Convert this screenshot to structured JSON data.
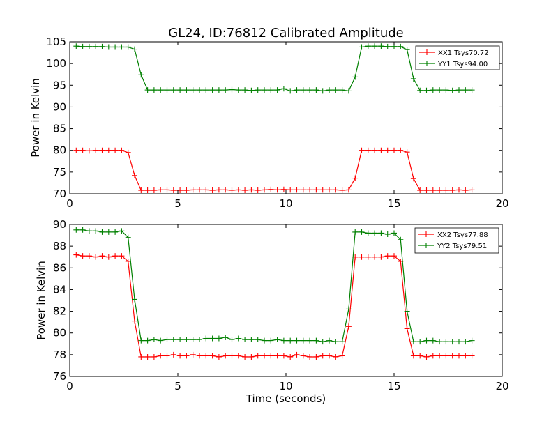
{
  "chart_data": [
    {
      "type": "line",
      "title": "GL24, ID:76812 Calibrated Amplitude",
      "xlabel": "",
      "ylabel": "Power in Kelvin",
      "xlim": [
        0,
        20
      ],
      "ylim": [
        70,
        105
      ],
      "xticks": [
        0,
        5,
        10,
        15,
        20
      ],
      "yticks": [
        70,
        75,
        80,
        85,
        90,
        95,
        100,
        105
      ],
      "grid": false,
      "legend_position": "top-right",
      "x": [
        0.3,
        0.6,
        0.9,
        1.2,
        1.5,
        1.8,
        2.1,
        2.4,
        2.7,
        3.0,
        3.3,
        3.6,
        3.9,
        4.2,
        4.5,
        4.8,
        5.1,
        5.4,
        5.7,
        6.0,
        6.3,
        6.6,
        6.9,
        7.2,
        7.5,
        7.8,
        8.1,
        8.4,
        8.7,
        9.0,
        9.3,
        9.6,
        9.9,
        10.2,
        10.5,
        10.8,
        11.1,
        11.4,
        11.7,
        12.0,
        12.3,
        12.6,
        12.9,
        13.2,
        13.5,
        13.8,
        14.1,
        14.4,
        14.7,
        15.0,
        15.3,
        15.6,
        15.9,
        16.2,
        16.5,
        16.8,
        17.1,
        17.4,
        17.7,
        18.0,
        18.3,
        18.6
      ],
      "series": [
        {
          "name": "XX1 Tsys70.72",
          "color": "#ff0000",
          "values": [
            80.0,
            80.0,
            79.9,
            80.0,
            80.0,
            80.0,
            80.0,
            80.0,
            79.5,
            74.2,
            70.8,
            70.8,
            70.8,
            70.9,
            70.9,
            70.8,
            70.8,
            70.8,
            70.9,
            70.9,
            70.9,
            70.8,
            70.9,
            70.9,
            70.8,
            70.9,
            70.8,
            70.9,
            70.8,
            70.9,
            71.0,
            70.9,
            71.0,
            70.9,
            70.9,
            70.9,
            70.9,
            70.9,
            70.9,
            70.9,
            70.9,
            70.8,
            70.9,
            73.6,
            80.0,
            80.0,
            80.0,
            80.0,
            80.0,
            80.0,
            80.0,
            79.6,
            73.5,
            70.8,
            70.8,
            70.8,
            70.8,
            70.8,
            70.8,
            70.9,
            70.8,
            70.9
          ]
        },
        {
          "name": "YY1 Tsys94.00",
          "color": "#008000",
          "values": [
            104.0,
            103.9,
            103.9,
            103.9,
            103.9,
            103.8,
            103.8,
            103.8,
            103.8,
            103.3,
            97.4,
            93.9,
            93.9,
            93.9,
            93.9,
            93.9,
            93.9,
            93.9,
            93.9,
            93.9,
            93.9,
            93.9,
            93.9,
            93.9,
            94.0,
            93.9,
            93.9,
            93.8,
            93.9,
            93.9,
            93.9,
            93.9,
            94.2,
            93.7,
            93.9,
            93.9,
            93.9,
            93.9,
            93.7,
            93.9,
            93.9,
            93.9,
            93.7,
            96.9,
            103.8,
            104.0,
            104.0,
            104.0,
            103.9,
            103.9,
            103.9,
            103.2,
            96.5,
            93.8,
            93.8,
            93.9,
            93.9,
            93.9,
            93.8,
            93.9,
            93.9,
            93.9
          ]
        }
      ]
    },
    {
      "type": "line",
      "title": "",
      "xlabel": "Time (seconds)",
      "ylabel": "Power in Kelvin",
      "xlim": [
        0,
        20
      ],
      "ylim": [
        76,
        90
      ],
      "xticks": [
        0,
        5,
        10,
        15,
        20
      ],
      "yticks": [
        76,
        78,
        80,
        82,
        84,
        86,
        88,
        90
      ],
      "grid": false,
      "legend_position": "top-right",
      "x": [
        0.3,
        0.6,
        0.9,
        1.2,
        1.5,
        1.8,
        2.1,
        2.4,
        2.7,
        3.0,
        3.3,
        3.6,
        3.9,
        4.2,
        4.5,
        4.8,
        5.1,
        5.4,
        5.7,
        6.0,
        6.3,
        6.6,
        6.9,
        7.2,
        7.5,
        7.8,
        8.1,
        8.4,
        8.7,
        9.0,
        9.3,
        9.6,
        9.9,
        10.2,
        10.5,
        10.8,
        11.1,
        11.4,
        11.7,
        12.0,
        12.3,
        12.6,
        12.9,
        13.2,
        13.5,
        13.8,
        14.1,
        14.4,
        14.7,
        15.0,
        15.3,
        15.6,
        15.9,
        16.2,
        16.5,
        16.8,
        17.1,
        17.4,
        17.7,
        18.0,
        18.3,
        18.6
      ],
      "series": [
        {
          "name": "XX2 Tsys77.88",
          "color": "#ff0000",
          "values": [
            87.2,
            87.1,
            87.1,
            87.0,
            87.1,
            87.0,
            87.1,
            87.1,
            86.6,
            81.1,
            77.8,
            77.8,
            77.8,
            77.9,
            77.9,
            78.0,
            77.9,
            77.9,
            78.0,
            77.9,
            77.9,
            77.9,
            77.8,
            77.9,
            77.9,
            77.9,
            77.8,
            77.8,
            77.9,
            77.9,
            77.9,
            77.9,
            77.9,
            77.8,
            78.0,
            77.9,
            77.8,
            77.8,
            77.9,
            77.9,
            77.8,
            77.9,
            80.6,
            87.0,
            87.0,
            87.0,
            87.0,
            87.0,
            87.1,
            87.1,
            86.6,
            80.4,
            77.9,
            77.9,
            77.8,
            77.9,
            77.9,
            77.9,
            77.9,
            77.9,
            77.9,
            77.9
          ]
        },
        {
          "name": "YY2 Tsys79.51",
          "color": "#008000",
          "values": [
            89.5,
            89.5,
            89.4,
            89.4,
            89.3,
            89.3,
            89.3,
            89.4,
            88.8,
            83.1,
            79.3,
            79.3,
            79.4,
            79.3,
            79.4,
            79.4,
            79.4,
            79.4,
            79.4,
            79.4,
            79.5,
            79.5,
            79.5,
            79.6,
            79.4,
            79.5,
            79.4,
            79.4,
            79.4,
            79.3,
            79.3,
            79.4,
            79.3,
            79.3,
            79.3,
            79.3,
            79.3,
            79.3,
            79.2,
            79.3,
            79.2,
            79.2,
            82.2,
            89.3,
            89.3,
            89.2,
            89.2,
            89.2,
            89.1,
            89.2,
            88.6,
            82.0,
            79.2,
            79.2,
            79.3,
            79.3,
            79.2,
            79.2,
            79.2,
            79.2,
            79.2,
            79.3
          ]
        }
      ]
    }
  ]
}
